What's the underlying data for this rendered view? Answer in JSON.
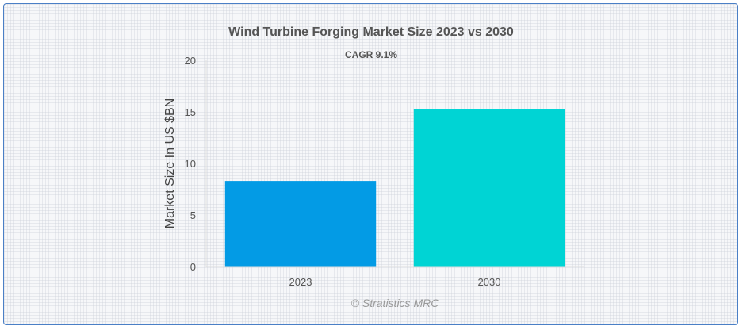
{
  "chart_data": {
    "type": "bar",
    "title": "Wind Turbine Forging Market Size 2023 vs 2030",
    "subtitle": "CAGR 9.1%",
    "xlabel": "",
    "ylabel": "Market Size In US $BN",
    "categories": [
      "2023",
      "2030"
    ],
    "values": [
      8.3,
      15.3
    ],
    "bar_colors": [
      "#039be5",
      "#00d4d4"
    ],
    "ylim": [
      0,
      20
    ],
    "yticks": [
      0,
      5,
      10,
      15,
      20
    ],
    "grid": false,
    "legend": "none"
  },
  "credit": "© Stratistics MRC"
}
